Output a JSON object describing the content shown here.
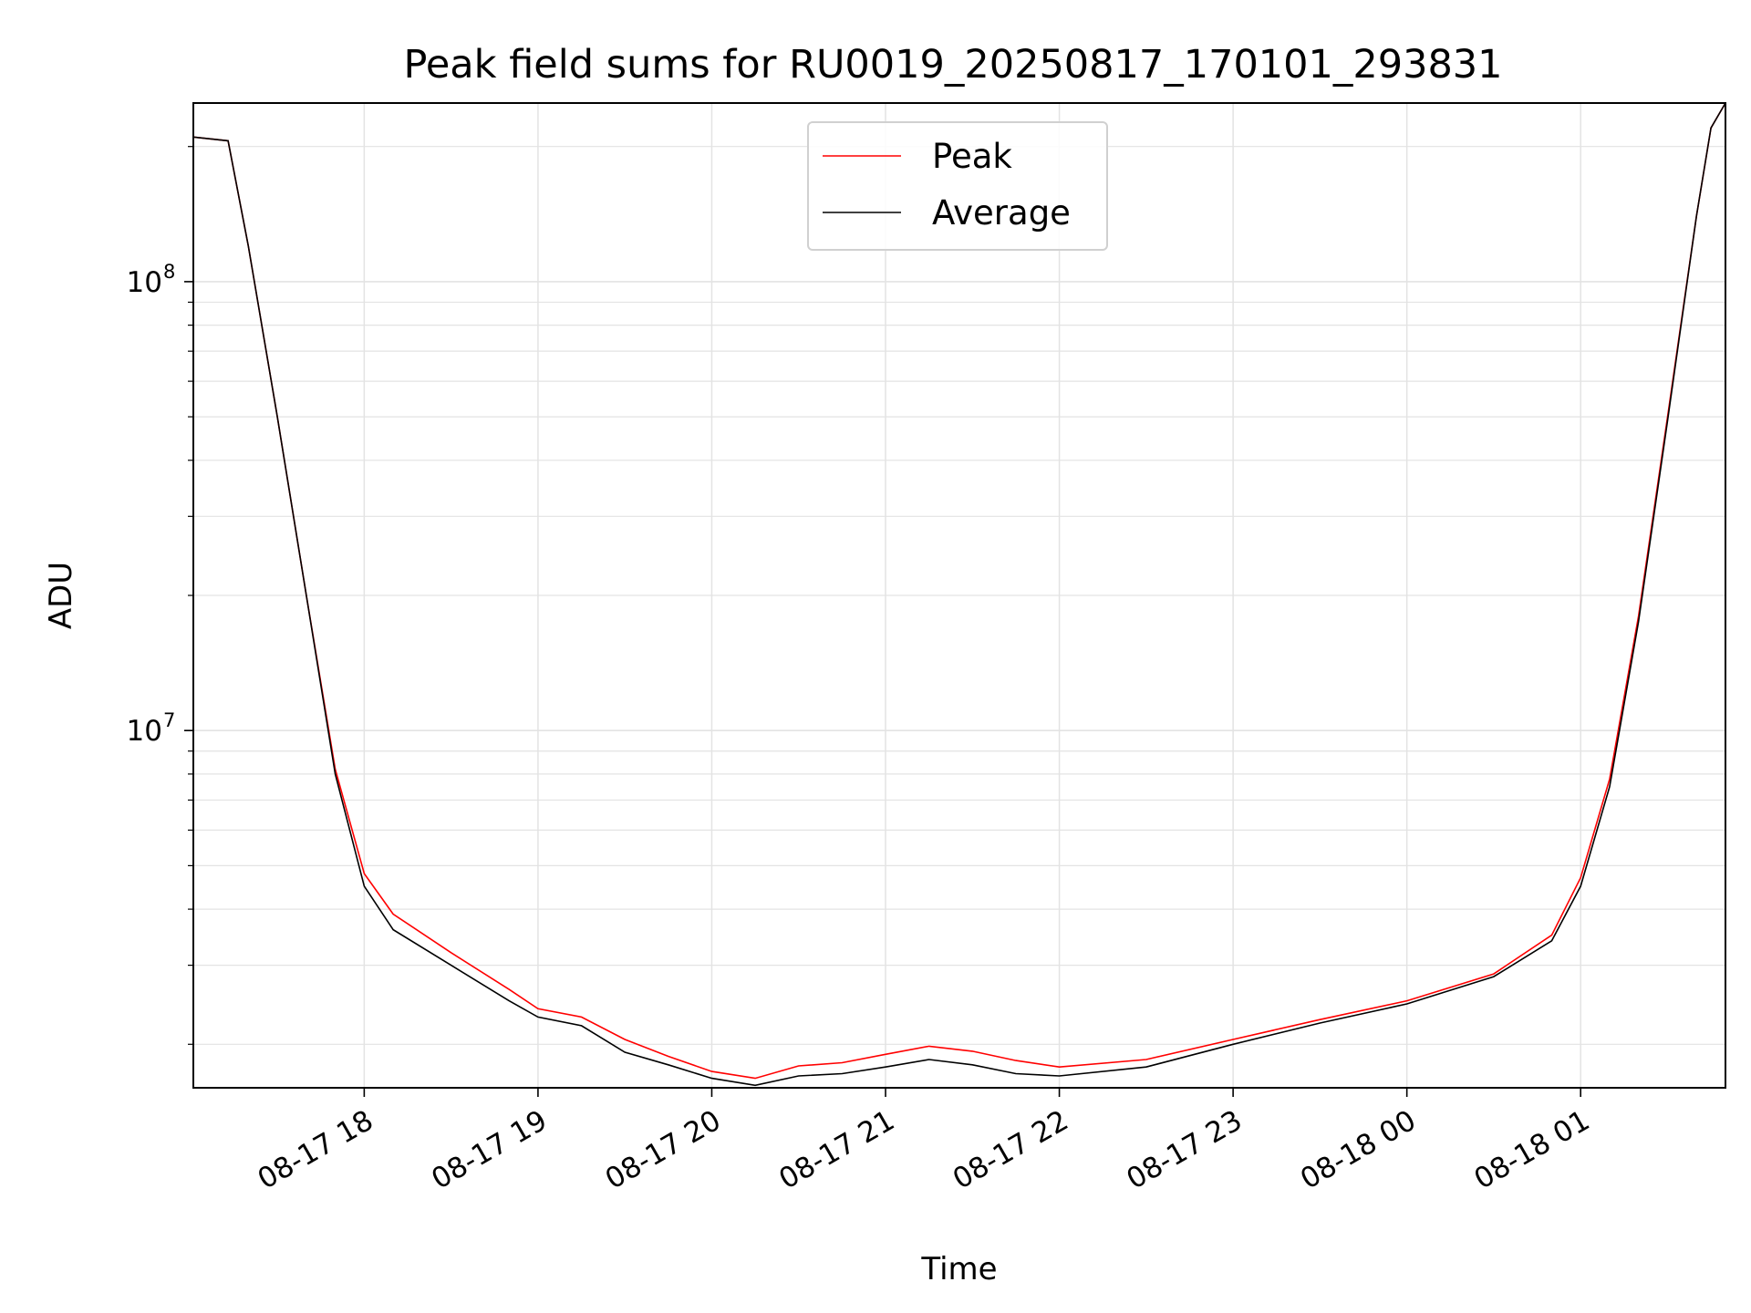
{
  "chart_data": {
    "type": "line",
    "title": "Peak field sums for RU0019_20250817_170101_293831",
    "xlabel": "Time",
    "ylabel": "ADU",
    "yscale": "log",
    "ylim": [
      1600000,
      250000000
    ],
    "xlim": [
      "2025-08-17 17:01",
      "2025-08-18 01:50"
    ],
    "x_ticks": [
      "08-17 18",
      "08-17 19",
      "08-17 20",
      "08-17 21",
      "08-17 22",
      "08-17 23",
      "08-18 00",
      "08-18 01"
    ],
    "y_ticks": [
      {
        "value": 10000000,
        "base": "10",
        "exp": "7"
      },
      {
        "value": 100000000,
        "base": "10",
        "exp": "8"
      }
    ],
    "grid": true,
    "legend_position": "upper center",
    "series": [
      {
        "name": "Peak",
        "color": "#ff0000",
        "x": [
          "2025-08-17 17:01",
          "2025-08-17 17:13",
          "2025-08-17 17:20",
          "2025-08-17 17:30",
          "2025-08-17 17:40",
          "2025-08-17 17:50",
          "2025-08-17 18:00",
          "2025-08-17 18:10",
          "2025-08-17 18:30",
          "2025-08-17 18:50",
          "2025-08-17 19:00",
          "2025-08-17 19:15",
          "2025-08-17 19:30",
          "2025-08-17 19:45",
          "2025-08-17 20:00",
          "2025-08-17 20:15",
          "2025-08-17 20:30",
          "2025-08-17 20:45",
          "2025-08-17 21:00",
          "2025-08-17 21:15",
          "2025-08-17 21:30",
          "2025-08-17 21:45",
          "2025-08-17 22:00",
          "2025-08-17 22:30",
          "2025-08-17 23:00",
          "2025-08-17 23:30",
          "2025-08-18 00:00",
          "2025-08-18 00:30",
          "2025-08-18 00:50",
          "2025-08-18 01:00",
          "2025-08-18 01:10",
          "2025-08-18 01:20",
          "2025-08-18 01:30",
          "2025-08-18 01:40",
          "2025-08-18 01:45",
          "2025-08-18 01:50"
        ],
        "values": [
          210000000,
          206000000,
          120000000,
          50000000,
          20000000,
          8200000,
          4800000,
          3900000,
          3200000,
          2650000,
          2400000,
          2300000,
          2050000,
          1880000,
          1740000,
          1680000,
          1790000,
          1820000,
          1900000,
          1980000,
          1930000,
          1840000,
          1780000,
          1850000,
          2050000,
          2270000,
          2500000,
          2870000,
          3500000,
          4700000,
          7800000,
          18000000,
          50000000,
          140000000,
          220000000,
          250000000
        ]
      },
      {
        "name": "Average",
        "color": "#000000",
        "x": [
          "2025-08-17 17:01",
          "2025-08-17 17:13",
          "2025-08-17 17:20",
          "2025-08-17 17:30",
          "2025-08-17 17:40",
          "2025-08-17 17:50",
          "2025-08-17 18:00",
          "2025-08-17 18:10",
          "2025-08-17 18:30",
          "2025-08-17 18:50",
          "2025-08-17 19:00",
          "2025-08-17 19:15",
          "2025-08-17 19:30",
          "2025-08-17 19:45",
          "2025-08-17 20:00",
          "2025-08-17 20:15",
          "2025-08-17 20:30",
          "2025-08-17 20:45",
          "2025-08-17 21:00",
          "2025-08-17 21:15",
          "2025-08-17 21:30",
          "2025-08-17 21:45",
          "2025-08-17 22:00",
          "2025-08-17 22:30",
          "2025-08-17 23:00",
          "2025-08-17 23:30",
          "2025-08-18 00:00",
          "2025-08-18 00:30",
          "2025-08-18 00:50",
          "2025-08-18 01:00",
          "2025-08-18 01:10",
          "2025-08-18 01:20",
          "2025-08-18 01:30",
          "2025-08-18 01:40",
          "2025-08-18 01:45",
          "2025-08-18 01:50"
        ],
        "values": [
          210000000,
          206000000,
          120000000,
          50000000,
          20000000,
          8000000,
          4500000,
          3600000,
          3000000,
          2500000,
          2300000,
          2200000,
          1920000,
          1800000,
          1680000,
          1620000,
          1700000,
          1720000,
          1780000,
          1850000,
          1800000,
          1720000,
          1700000,
          1780000,
          2000000,
          2230000,
          2460000,
          2830000,
          3400000,
          4500000,
          7500000,
          17500000,
          49000000,
          140000000,
          220000000,
          250000000
        ]
      }
    ]
  }
}
